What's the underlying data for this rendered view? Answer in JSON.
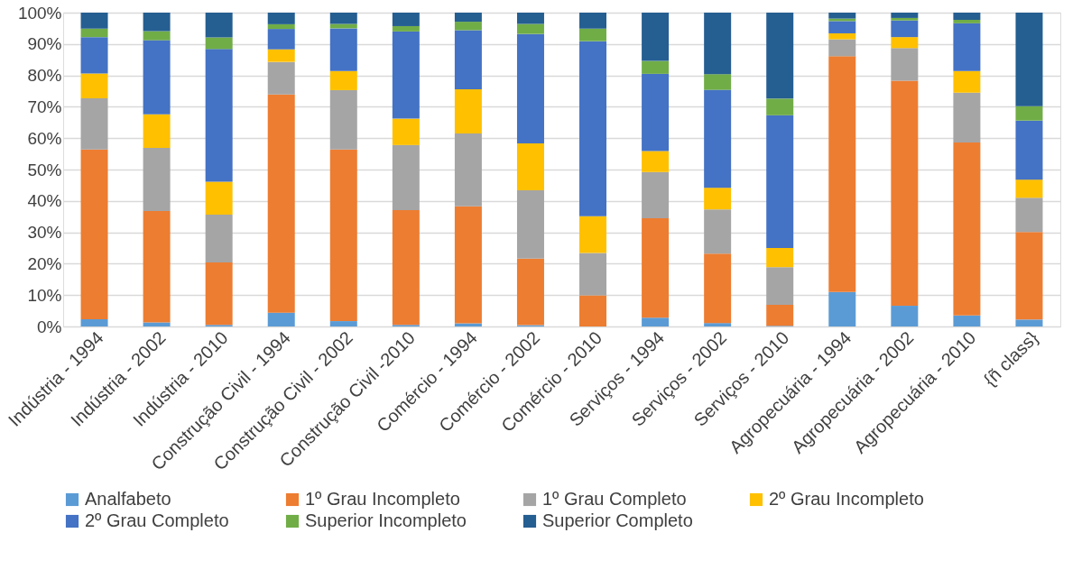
{
  "chart_data": {
    "type": "bar",
    "stacked": true,
    "categories": [
      "Indústria - 1994",
      "Indústria - 2002",
      "Indústria - 2010",
      "Construção Civil - 1994",
      "Construção Civil - 2002",
      "Construção Civil -2010",
      "Comércio - 1994",
      "Comércio - 2002",
      "Comércio - 2010",
      "Serviços - 1994",
      "Serviços - 2002",
      "Serviços - 2010",
      "Agropecuária - 1994",
      "Agropecuária - 2002",
      "Agropecuária - 2010",
      "{ñ class}"
    ],
    "series": [
      {
        "name": "Analfabeto",
        "color": "#5b9bd5",
        "values": [
          2.3,
          1.3,
          0.5,
          4.4,
          1.7,
          0.5,
          1.0,
          0.4,
          0,
          2.8,
          1.1,
          0.2,
          11.0,
          6.6,
          3.5,
          2.2
        ]
      },
      {
        "name": "1º Grau Incompleto",
        "color": "#ed7d31",
        "values": [
          54.1,
          35.5,
          19.9,
          69.5,
          54.7,
          36.6,
          37.3,
          21.2,
          9.9,
          31.7,
          22.1,
          6.7,
          75.1,
          71.7,
          55.1,
          27.9
        ]
      },
      {
        "name": "1º Grau Completo",
        "color": "#a5a5a5",
        "values": [
          16.3,
          20.1,
          15.2,
          10.4,
          18.9,
          20.7,
          23.2,
          21.8,
          13.5,
          14.7,
          14.1,
          12.0,
          5.4,
          10.4,
          15.9,
          10.9
        ]
      },
      {
        "name": "2º Grau Incompleto",
        "color": "#ffc000",
        "values": [
          7.9,
          10.7,
          10.5,
          4.0,
          6.1,
          8.4,
          14.1,
          14.9,
          11.7,
          6.7,
          6.9,
          6.1,
          1.9,
          3.5,
          6.9,
          5.8
        ]
      },
      {
        "name": "2º Grau Completo",
        "color": "#4472c4",
        "values": [
          11.6,
          23.6,
          42.3,
          6.5,
          13.6,
          27.8,
          18.8,
          34.9,
          55.8,
          24.6,
          31.2,
          42.3,
          3.9,
          5.3,
          15.2,
          18.8
        ]
      },
      {
        "name": "Superior Incompleto",
        "color": "#70ad47",
        "values": [
          2.7,
          2.9,
          3.7,
          1.5,
          1.4,
          1.7,
          2.7,
          3.2,
          4.0,
          4.1,
          5.0,
          5.3,
          0.8,
          0.8,
          1.1,
          4.6
        ]
      },
      {
        "name": "Superior Completo",
        "color": "#255e91",
        "values": [
          5.1,
          5.9,
          7.9,
          3.7,
          3.6,
          4.3,
          2.9,
          3.6,
          5.1,
          15.4,
          19.6,
          27.4,
          1.9,
          1.7,
          2.3,
          29.8
        ]
      }
    ],
    "ylim": [
      0,
      100
    ],
    "yticks": [
      {
        "value": 0,
        "label": "0%"
      },
      {
        "value": 10,
        "label": "10%"
      },
      {
        "value": 20,
        "label": "20%"
      },
      {
        "value": 30,
        "label": "30%"
      },
      {
        "value": 40,
        "label": "40%"
      },
      {
        "value": 50,
        "label": "50%"
      },
      {
        "value": 60,
        "label": "60%"
      },
      {
        "value": 70,
        "label": "70%"
      },
      {
        "value": 80,
        "label": "80%"
      },
      {
        "value": 90,
        "label": "90%"
      },
      {
        "value": 100,
        "label": "100%"
      }
    ],
    "grid": "y",
    "legend": "bottom"
  }
}
